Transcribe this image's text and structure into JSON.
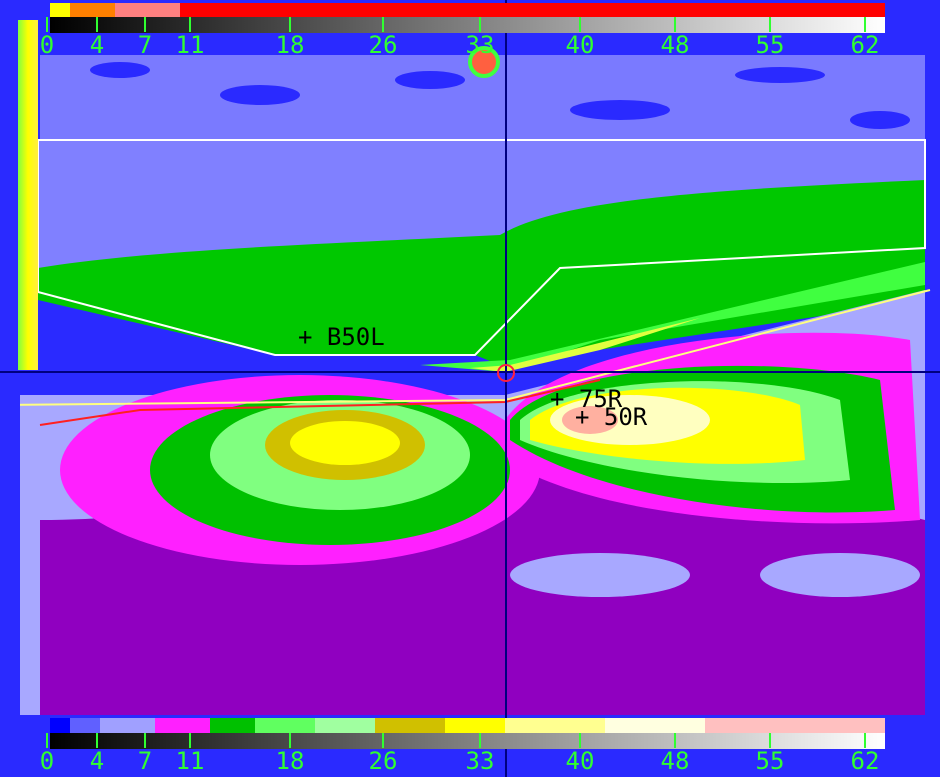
{
  "scale": {
    "labels": [
      "0",
      "4",
      "7",
      "11",
      "18",
      "26",
      "33",
      "40",
      "48",
      "55",
      "62"
    ]
  },
  "annotations": {
    "b50l": "+ B50L",
    "r75": "+ 75R",
    "r50": "+ 50R"
  }
}
